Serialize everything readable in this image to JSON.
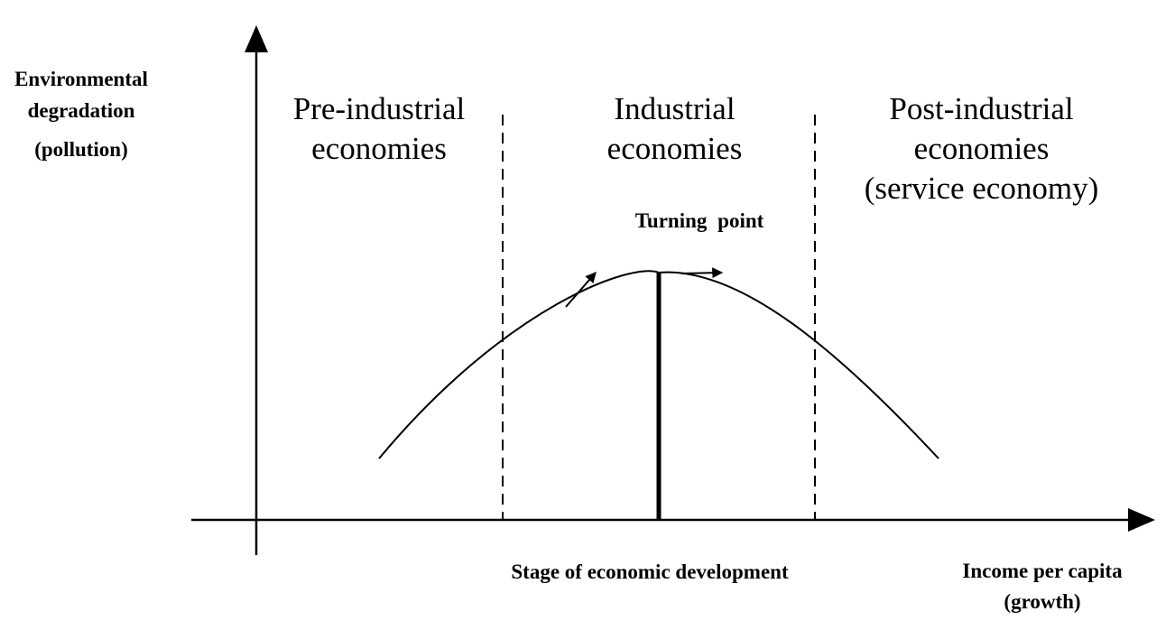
{
  "y_axis_label": [
    "Environmental",
    "degradation",
    "(pollution)"
  ],
  "x_axis_label": [
    "Income per capita",
    "(growth)"
  ],
  "x_axis_caption": "Stage of economic development",
  "turning_point_label": "Turning point",
  "regions": [
    {
      "lines": [
        "Pre-industrial",
        "economies"
      ]
    },
    {
      "lines": [
        "Industrial",
        "economies"
      ]
    },
    {
      "lines": [
        "Post-industrial",
        "economies",
        "(service economy)"
      ]
    }
  ]
}
